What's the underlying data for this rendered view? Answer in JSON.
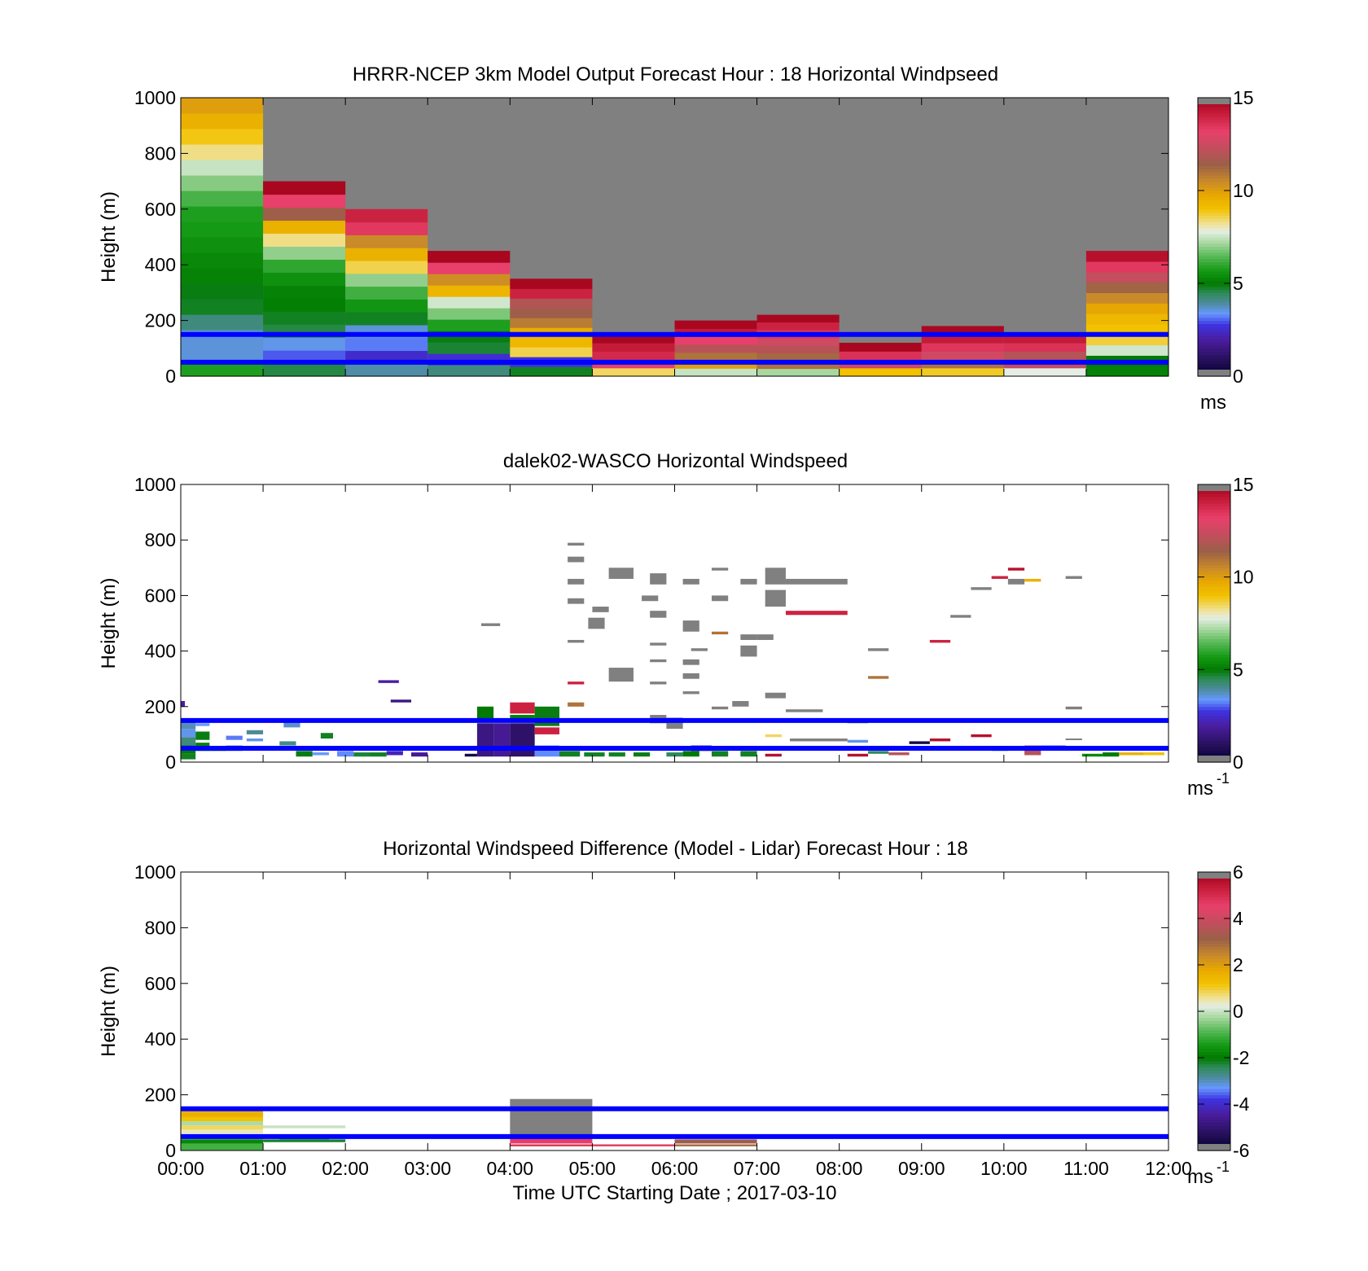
{
  "chart_data": [
    {
      "type": "heatmap",
      "title": "HRRR-NCEP 3km Model Output   Forecast Hour : 18 Horizontal Windpseed",
      "ylabel": "Height (m)",
      "xlabel": "",
      "ylim": [
        0,
        1000
      ],
      "yticks": [
        "0",
        "200",
        "400",
        "600",
        "800",
        "1000"
      ],
      "xticks": [
        "00:00",
        "01:00",
        "02:00",
        "03:00",
        "04:00",
        "05:00",
        "06:00",
        "07:00",
        "08:00",
        "09:00",
        "10:00",
        "11:00",
        "12:00"
      ],
      "show_xticklabels": false,
      "colorbar": {
        "min": 0,
        "max": 15,
        "ticks": [
          "0",
          "5",
          "10",
          "15"
        ],
        "unit": "ms",
        "unit_sup": ""
      },
      "background": "#808080",
      "reference_lines_m": [
        50,
        150
      ],
      "reference_line_color": "#0000ff",
      "columns": [
        {
          "start_hour": 0,
          "top_m": 1000,
          "speeds": [
            5.8,
            3.6,
            3.6,
            4.2,
            4.8,
            4.9,
            5.2,
            5.3,
            5.5,
            5.7,
            5.8,
            6.3,
            6.9,
            7.5,
            8.3,
            8.9,
            9.5,
            10.0
          ]
        },
        {
          "start_hour": 1,
          "top_m": 700,
          "speeds": [
            4.6,
            3.0,
            3.5,
            4.6,
            4.8,
            5.1,
            5.2,
            5.5,
            6.0,
            7.0,
            8.3,
            9.5,
            11.5,
            13.2,
            14.8
          ]
        },
        {
          "start_hour": 2,
          "top_m": 600,
          "speeds": [
            3.9,
            2.5,
            3.2,
            3.6,
            4.8,
            5.6,
            6.2,
            7.0,
            8.6,
            9.5,
            10.5,
            13.4,
            14.0
          ]
        },
        {
          "start_hour": 3,
          "top_m": 450,
          "speeds": [
            4.2,
            2.6,
            4.7,
            4.9,
            5.8,
            6.8,
            7.6,
            9.4,
            10.4,
            13.2,
            14.8
          ]
        },
        {
          "start_hour": 4,
          "top_m": 350,
          "speeds": [
            4.8,
            2.7,
            8.6,
            9.3,
            9.6,
            10.8,
            11.5,
            11.9,
            14.0,
            14.8
          ]
        },
        {
          "start_hour": 5,
          "top_m": 150,
          "speeds": [
            8.5,
            13.0,
            13.8,
            14.2,
            14.8
          ]
        },
        {
          "start_hour": 6,
          "top_m": 200,
          "speeds": [
            7.5,
            10.0,
            11.0,
            12.0,
            13.2,
            14.2,
            14.8
          ]
        },
        {
          "start_hour": 7,
          "top_m": 250,
          "speeds": [
            7.2,
            11.0,
            11.2,
            12.0,
            12.6,
            13.5,
            14.0,
            14.8,
            15.0
          ]
        },
        {
          "start_hour": 8,
          "top_m": 120,
          "speeds": [
            9.0,
            12.5,
            13.6,
            14.8
          ]
        },
        {
          "start_hour": 9,
          "top_m": 180,
          "speeds": [
            8.8,
            11.0,
            12.6,
            13.5,
            14.2,
            14.8
          ]
        },
        {
          "start_hour": 10,
          "top_m": 150,
          "speeds": [
            7.8,
            12.2,
            12.0,
            13.6,
            14.2
          ]
        },
        {
          "start_hour": 11,
          "top_m": 450,
          "speeds": [
            5.2,
            5.0,
            7.6,
            8.7,
            9.0,
            9.3,
            9.8,
            10.5,
            11.3,
            12.3,
            13.4,
            14.5
          ]
        }
      ]
    },
    {
      "type": "heatmap",
      "title": "dalek02-WASCO  Horizontal Windspeed",
      "ylabel": "Height (m)",
      "xlabel": "",
      "ylim": [
        0,
        1000
      ],
      "yticks": [
        "0",
        "200",
        "400",
        "600",
        "800",
        "1000"
      ],
      "xticks": [
        "00:00",
        "01:00",
        "02:00",
        "03:00",
        "04:00",
        "05:00",
        "06:00",
        "07:00",
        "08:00",
        "09:00",
        "10:00",
        "11:00",
        "12:00"
      ],
      "show_xticklabels": false,
      "colorbar": {
        "min": 0,
        "max": 15,
        "ticks": [
          "0",
          "5",
          "10",
          "15"
        ],
        "unit": "ms",
        "unit_sup": "-1"
      },
      "background": "#ffffff",
      "reference_lines_m": [
        50,
        150
      ],
      "reference_line_color": "#0000ff",
      "sparse_cells": [
        [
          0.0,
          0.18,
          10,
          30,
          4.8
        ],
        [
          0.0,
          0.18,
          30,
          60,
          5.0
        ],
        [
          0.0,
          0.18,
          60,
          90,
          4.2
        ],
        [
          0.0,
          0.18,
          90,
          120,
          3.5
        ],
        [
          0.0,
          0.18,
          120,
          150,
          3.8
        ],
        [
          0.0,
          0.05,
          200,
          220,
          2.0
        ],
        [
          0.18,
          0.35,
          40,
          70,
          5.2
        ],
        [
          0.18,
          0.35,
          80,
          110,
          4.9
        ],
        [
          0.18,
          0.35,
          130,
          140,
          3.4
        ],
        [
          0.35,
          0.55,
          40,
          55,
          4.7
        ],
        [
          0.55,
          0.75,
          40,
          60,
          3.6
        ],
        [
          0.55,
          0.75,
          80,
          95,
          3.2
        ],
        [
          0.8,
          1.0,
          75,
          85,
          3.5
        ],
        [
          0.8,
          1.0,
          100,
          115,
          4.0
        ],
        [
          1.2,
          1.4,
          60,
          75,
          4.1
        ],
        [
          1.25,
          1.45,
          125,
          145,
          3.7
        ],
        [
          1.4,
          1.6,
          20,
          40,
          4.9
        ],
        [
          1.6,
          1.8,
          25,
          35,
          3.4
        ],
        [
          1.7,
          1.85,
          85,
          105,
          4.8
        ],
        [
          1.9,
          2.1,
          20,
          40,
          3.3
        ],
        [
          2.1,
          2.3,
          20,
          35,
          4.7
        ],
        [
          2.3,
          2.5,
          20,
          35,
          4.8
        ],
        [
          2.4,
          2.65,
          285,
          295,
          2.0
        ],
        [
          2.5,
          2.7,
          25,
          40,
          2.2
        ],
        [
          2.55,
          2.8,
          215,
          225,
          1.5
        ],
        [
          2.8,
          3.0,
          20,
          35,
          1.8
        ],
        [
          3.45,
          3.6,
          20,
          30,
          0.5
        ],
        [
          3.65,
          3.88,
          490,
          500,
          15.0
        ],
        [
          3.6,
          3.8,
          20,
          140,
          1.5
        ],
        [
          3.8,
          4.0,
          20,
          140,
          1.8
        ],
        [
          3.6,
          3.8,
          150,
          200,
          5.0
        ],
        [
          4.0,
          4.3,
          20,
          140,
          1.1
        ],
        [
          4.0,
          4.3,
          150,
          170,
          5.2
        ],
        [
          4.0,
          4.3,
          175,
          215,
          14.0
        ],
        [
          4.3,
          4.6,
          20,
          60,
          3.3
        ],
        [
          4.3,
          4.6,
          100,
          125,
          14.0
        ],
        [
          4.3,
          4.6,
          130,
          200,
          4.9
        ],
        [
          4.6,
          4.85,
          20,
          40,
          4.8
        ],
        [
          4.7,
          4.9,
          200,
          215,
          11.0
        ],
        [
          4.7,
          4.9,
          280,
          290,
          14.0
        ],
        [
          4.7,
          4.9,
          780,
          790,
          15.0
        ],
        [
          4.7,
          4.9,
          720,
          740,
          15.0
        ],
        [
          4.7,
          4.9,
          640,
          660,
          15.0
        ],
        [
          4.7,
          4.9,
          570,
          590,
          15.0
        ],
        [
          4.7,
          4.9,
          430,
          440,
          15.0
        ],
        [
          4.9,
          5.15,
          20,
          35,
          4.8
        ],
        [
          4.95,
          5.15,
          480,
          520,
          15.0
        ],
        [
          5.0,
          5.2,
          540,
          560,
          15.0
        ],
        [
          5.2,
          5.4,
          20,
          35,
          4.8
        ],
        [
          5.2,
          5.5,
          660,
          700,
          15.0
        ],
        [
          5.2,
          5.5,
          290,
          340,
          15.0
        ],
        [
          5.5,
          5.7,
          20,
          35,
          4.9
        ],
        [
          5.6,
          5.8,
          580,
          600,
          15.0
        ],
        [
          5.7,
          5.9,
          640,
          680,
          15.0
        ],
        [
          5.7,
          5.9,
          520,
          545,
          15.0
        ],
        [
          5.7,
          5.9,
          420,
          430,
          15.0
        ],
        [
          5.7,
          5.9,
          360,
          370,
          15.0
        ],
        [
          5.7,
          5.9,
          280,
          290,
          15.0
        ],
        [
          5.7,
          5.9,
          140,
          170,
          15.0
        ],
        [
          5.9,
          6.1,
          20,
          35,
          4.5
        ],
        [
          5.9,
          6.1,
          120,
          160,
          15.0
        ],
        [
          6.1,
          6.3,
          20,
          40,
          5.0
        ],
        [
          6.1,
          6.3,
          640,
          660,
          15.0
        ],
        [
          6.1,
          6.3,
          470,
          510,
          15.0
        ],
        [
          6.1,
          6.3,
          350,
          370,
          15.0
        ],
        [
          6.1,
          6.3,
          300,
          320,
          15.0
        ],
        [
          6.1,
          6.3,
          245,
          255,
          15.0
        ],
        [
          6.2,
          6.4,
          400,
          410,
          15.0
        ],
        [
          6.2,
          6.45,
          40,
          60,
          2.0
        ],
        [
          6.45,
          6.65,
          20,
          40,
          4.8
        ],
        [
          6.45,
          6.65,
          690,
          700,
          15.0
        ],
        [
          6.45,
          6.65,
          460,
          470,
          11.0
        ],
        [
          6.45,
          6.65,
          580,
          600,
          15.0
        ],
        [
          6.45,
          6.65,
          190,
          200,
          15.0
        ],
        [
          6.7,
          6.9,
          200,
          220,
          15.0
        ],
        [
          6.8,
          7.0,
          440,
          460,
          15.0
        ],
        [
          6.8,
          7.0,
          380,
          420,
          15.0
        ],
        [
          6.8,
          7.0,
          640,
          660,
          15.0
        ],
        [
          6.8,
          7.0,
          20,
          40,
          4.8
        ],
        [
          7.0,
          7.2,
          440,
          460,
          15.0
        ],
        [
          7.1,
          7.3,
          20,
          30,
          14.5
        ],
        [
          7.1,
          7.3,
          90,
          100,
          8.5
        ],
        [
          7.1,
          7.35,
          640,
          700,
          15.0
        ],
        [
          7.1,
          7.35,
          560,
          620,
          15.0
        ],
        [
          7.1,
          7.35,
          230,
          250,
          15.0
        ],
        [
          7.35,
          7.8,
          180,
          190,
          15.0
        ],
        [
          7.35,
          8.1,
          640,
          660,
          15.0
        ],
        [
          7.35,
          8.1,
          530,
          545,
          14.0
        ],
        [
          7.4,
          8.1,
          75,
          85,
          15.0
        ],
        [
          8.1,
          8.35,
          70,
          80,
          3.5
        ],
        [
          8.1,
          8.35,
          140,
          150,
          15.0
        ],
        [
          8.1,
          8.35,
          20,
          30,
          14.5
        ],
        [
          8.35,
          8.6,
          400,
          410,
          15.0
        ],
        [
          8.35,
          8.6,
          30,
          40,
          4.5
        ],
        [
          8.35,
          8.6,
          300,
          310,
          11.0
        ],
        [
          8.6,
          8.85,
          25,
          35,
          12.0
        ],
        [
          8.85,
          9.1,
          65,
          75,
          0.5
        ],
        [
          9.1,
          9.35,
          430,
          440,
          14.0
        ],
        [
          9.1,
          9.35,
          75,
          85,
          14.5
        ],
        [
          9.35,
          9.6,
          520,
          530,
          15.0
        ],
        [
          9.6,
          9.85,
          620,
          630,
          15.0
        ],
        [
          9.6,
          9.85,
          90,
          100,
          14.5
        ],
        [
          9.85,
          10.05,
          660,
          670,
          14.0
        ],
        [
          9.85,
          10.05,
          40,
          55,
          3.5
        ],
        [
          10.05,
          10.25,
          690,
          700,
          14.5
        ],
        [
          10.05,
          10.25,
          640,
          660,
          15.0
        ],
        [
          10.25,
          10.45,
          650,
          660,
          9.5
        ],
        [
          10.25,
          10.45,
          25,
          60,
          12.0
        ],
        [
          10.45,
          10.75,
          50,
          60,
          3.0
        ],
        [
          10.75,
          10.95,
          660,
          670,
          15.0
        ],
        [
          10.75,
          10.95,
          190,
          200,
          15.0
        ],
        [
          10.75,
          10.95,
          80,
          85,
          15.0
        ],
        [
          10.95,
          11.2,
          20,
          30,
          5.3
        ],
        [
          11.2,
          11.4,
          20,
          35,
          5.0
        ],
        [
          11.4,
          11.7,
          25,
          35,
          9.5
        ],
        [
          11.7,
          11.95,
          25,
          35,
          9.0
        ]
      ]
    },
    {
      "type": "heatmap",
      "title": "Horizontal Windspeed Difference (Model - Lidar) Forecast Hour : 18",
      "ylabel": "Height (m)",
      "xlabel": "Time UTC  Starting Date ; 2017-03-10",
      "ylim": [
        0,
        1000
      ],
      "yticks": [
        "0",
        "200",
        "400",
        "600",
        "800",
        "1000"
      ],
      "xticks": [
        "00:00",
        "01:00",
        "02:00",
        "03:00",
        "04:00",
        "05:00",
        "06:00",
        "07:00",
        "08:00",
        "09:00",
        "10:00",
        "11:00",
        "12:00"
      ],
      "show_xticklabels": true,
      "colorbar": {
        "min": -6,
        "max": 6,
        "ticks": [
          "-6",
          "-4",
          "-2",
          "0",
          "2",
          "4",
          "6"
        ],
        "unit": "ms",
        "unit_sup": "-1"
      },
      "background": "#ffffff",
      "reference_lines_m": [
        50,
        150
      ],
      "reference_line_color": "#0000ff",
      "sparse_cells": [
        [
          0,
          1,
          0,
          25,
          -1.0
        ],
        [
          0,
          1,
          25,
          40,
          -1.8
        ],
        [
          0,
          1,
          40,
          55,
          -0.7
        ],
        [
          0,
          1,
          60,
          75,
          0.4
        ],
        [
          0,
          1,
          75,
          90,
          0.8
        ],
        [
          0,
          1,
          90,
          105,
          -0.2
        ],
        [
          0,
          1,
          105,
          120,
          1.2
        ],
        [
          0,
          1,
          120,
          135,
          1.6
        ],
        [
          0,
          1,
          135,
          150,
          1.8
        ],
        [
          1,
          2,
          30,
          40,
          -2.2
        ],
        [
          1,
          2,
          80,
          90,
          0.0
        ],
        [
          1.2,
          1.8,
          40,
          50,
          -1.5
        ],
        [
          4,
          5,
          55,
          185,
          6.0
        ],
        [
          4,
          5,
          25,
          45,
          4.6
        ],
        [
          4,
          5,
          15,
          22,
          4.9
        ],
        [
          5,
          6,
          15,
          22,
          4.7
        ],
        [
          6,
          7,
          25,
          40,
          3.2
        ],
        [
          6,
          7,
          15,
          22,
          3.0
        ]
      ]
    }
  ]
}
